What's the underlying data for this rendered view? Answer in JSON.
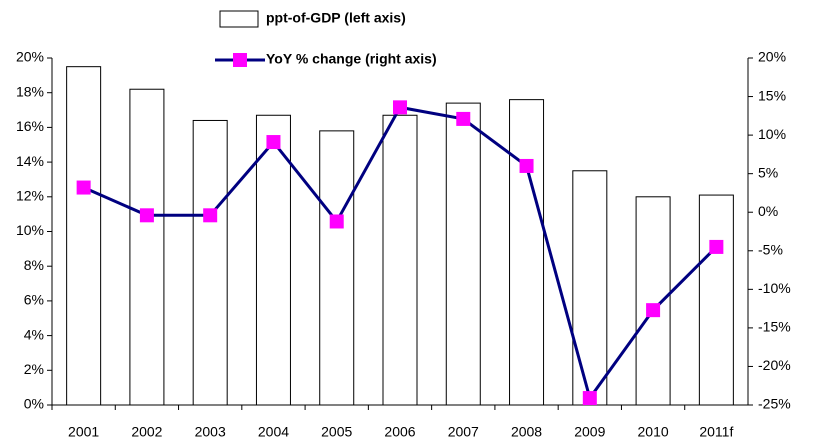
{
  "chart_data": {
    "type": "bar-line",
    "categories": [
      "2001",
      "2002",
      "2003",
      "2004",
      "2005",
      "2006",
      "2007",
      "2008",
      "2009",
      "2010",
      "2011f"
    ],
    "series": [
      {
        "name": "ppt-of-GDP (left axis)",
        "type": "bar",
        "color": "#ffffff",
        "values": [
          19.5,
          18.2,
          16.4,
          16.7,
          15.8,
          16.7,
          17.4,
          17.6,
          13.5,
          12.0,
          12.1
        ]
      },
      {
        "name": "YoY % change (right axis)",
        "type": "line",
        "axis": "y2",
        "color": "#000080",
        "marker_color": "#ff00ff",
        "values": [
          3.2,
          -0.4,
          -0.4,
          9.1,
          -1.2,
          13.6,
          12.1,
          6.0,
          -24.1,
          -12.7,
          -4.5
        ]
      }
    ],
    "ylim": [
      0,
      20
    ],
    "yticks": [
      {
        "value": 0,
        "label": "0%"
      },
      {
        "value": 2,
        "label": "2%"
      },
      {
        "value": 4,
        "label": "4%"
      },
      {
        "value": 6,
        "label": "6%"
      },
      {
        "value": 8,
        "label": "8%"
      },
      {
        "value": 10,
        "label": "10%"
      },
      {
        "value": 12,
        "label": "12%"
      },
      {
        "value": 14,
        "label": "14%"
      },
      {
        "value": 16,
        "label": "16%"
      },
      {
        "value": 18,
        "label": "18%"
      },
      {
        "value": 20,
        "label": "20%"
      }
    ],
    "y2lim": [
      -25,
      20
    ],
    "y2ticks": [
      {
        "value": -25,
        "label": "-25%"
      },
      {
        "value": -20,
        "label": "-20%"
      },
      {
        "value": -15,
        "label": "-15%"
      },
      {
        "value": -10,
        "label": "-10%"
      },
      {
        "value": -5,
        "label": "-5%"
      },
      {
        "value": 0,
        "label": "0%"
      },
      {
        "value": 5,
        "label": "5%"
      },
      {
        "value": 10,
        "label": "10%"
      },
      {
        "value": 15,
        "label": "15%"
      },
      {
        "value": 20,
        "label": "20%"
      }
    ],
    "grid": false,
    "legend": "top"
  }
}
